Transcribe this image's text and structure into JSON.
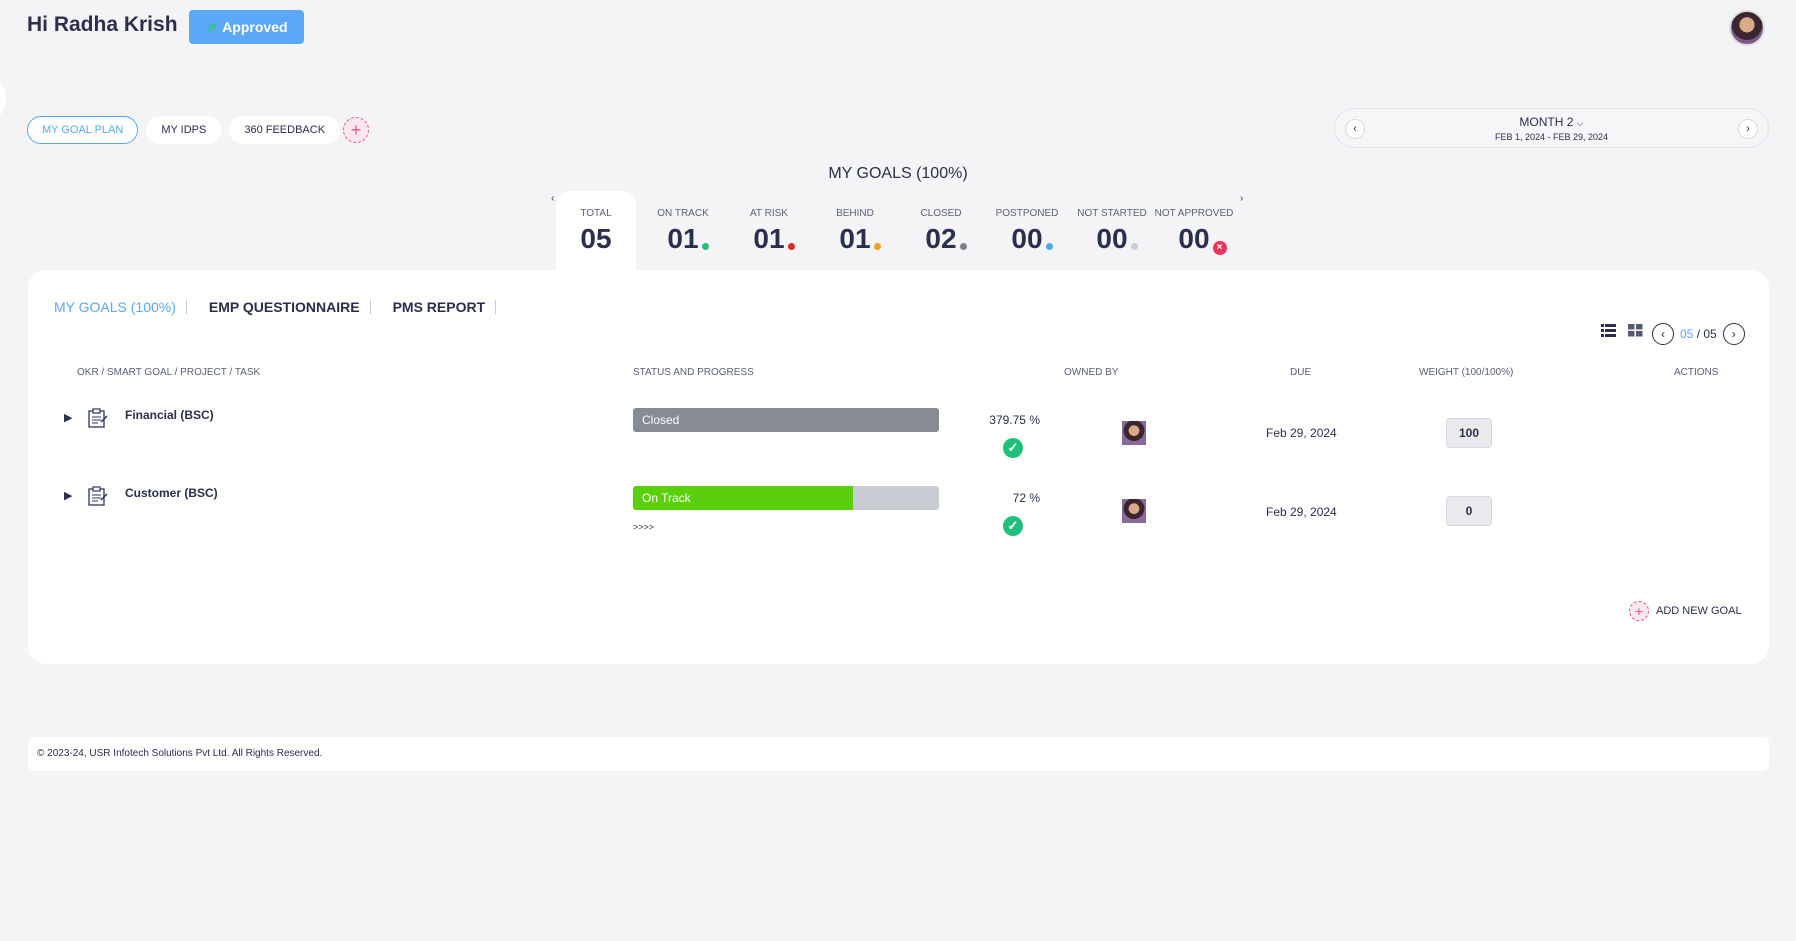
{
  "header": {
    "greeting": "Hi Radha Krish",
    "approved_label": "Approved"
  },
  "pill_tabs": [
    {
      "label": "MY GOAL PLAN",
      "active": true
    },
    {
      "label": "MY IDPS",
      "active": false
    },
    {
      "label": "360 FEEDBACK",
      "active": false
    }
  ],
  "month_picker": {
    "title": "MONTH 2",
    "range": "FEB 1, 2024 - FEB 29, 2024"
  },
  "goals_summary": {
    "title": "MY GOALS (100%)",
    "stats": [
      {
        "label": "TOTAL",
        "value": "05",
        "dot": ""
      },
      {
        "label": "ON TRACK",
        "value": "01",
        "dot": "#21c07a"
      },
      {
        "label": "AT RISK",
        "value": "01",
        "dot": "#e3261f"
      },
      {
        "label": "BEHIND",
        "value": "01",
        "dot": "#f0a020"
      },
      {
        "label": "CLOSED",
        "value": "02",
        "dot": "#7c828d"
      },
      {
        "label": "POSTPONED",
        "value": "00",
        "dot": "#4aa8f0"
      },
      {
        "label": "NOT STARTED",
        "value": "00",
        "dot": "#c9ccd3"
      },
      {
        "label": "NOT APPROVED",
        "value": "00",
        "dot": "x"
      }
    ]
  },
  "sub_tabs": [
    {
      "label": "MY GOALS (100%)",
      "active": true
    },
    {
      "label": "EMP QUESTIONNAIRE",
      "active": false
    },
    {
      "label": "PMS REPORT",
      "active": false
    }
  ],
  "pager": {
    "current": "05",
    "total": "/ 05"
  },
  "table": {
    "headers": {
      "goal": "OKR / SMART GOAL / PROJECT / TASK",
      "status": "STATUS AND PROGRESS",
      "owner": "OWNED BY",
      "due": "DUE",
      "weight": "WEIGHT (100/100%)",
      "actions": "ACTIONS"
    },
    "rows": [
      {
        "name": "Financial (BSC)",
        "status": "Closed",
        "status_color": "#868b94",
        "progress_pct": 100,
        "percent": "379.75  %",
        "due": "Feb 29, 2024",
        "weight": "100",
        "extra": ""
      },
      {
        "name": "Customer (BSC)",
        "status": "On Track",
        "status_color": "#5ccf0c",
        "progress_pct": 72,
        "percent": "72  %",
        "due": "Feb 29, 2024",
        "weight": "0",
        "extra": ">>>>"
      }
    ]
  },
  "add_goal_label": "ADD NEW GOAL",
  "footer": "© 2023-24, USR Infotech Solutions Pvt Ltd. All Rights Reserved."
}
